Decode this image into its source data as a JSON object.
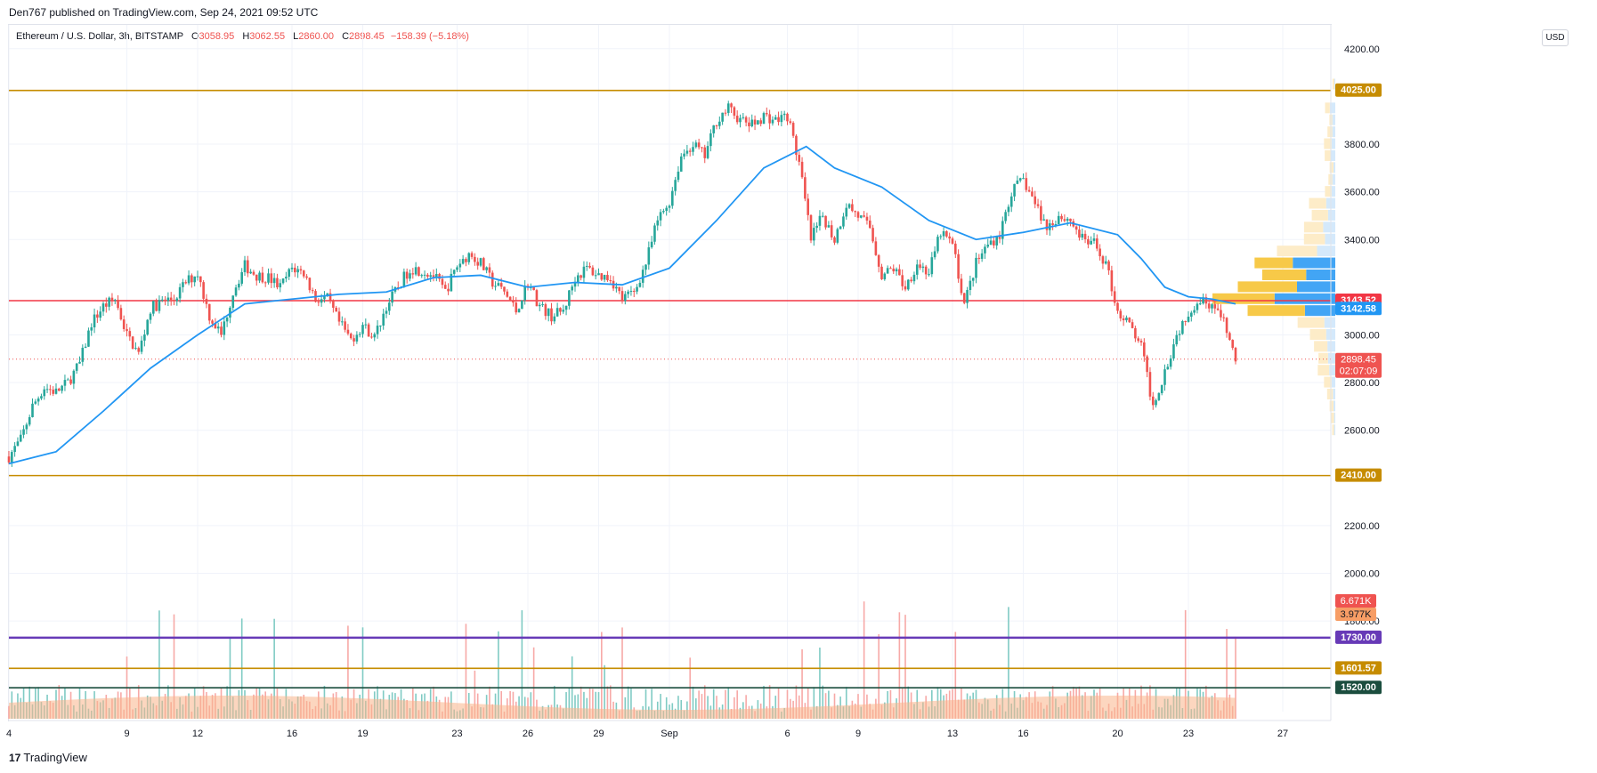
{
  "header": {
    "published": "Den767 published on TradingView.com, Sep 24, 2021 09:52 UTC"
  },
  "legend": {
    "symbol": "Ethereum / U.S. Dollar, 3h, BITSTAMP",
    "o_label": "O",
    "o": "3058.95",
    "h_label": "H",
    "h": "3062.55",
    "l_label": "L",
    "l": "2860.00",
    "c_label": "C",
    "c": "2898.45",
    "change": "−158.39 (−5.18%)"
  },
  "currency": "USD",
  "footer": {
    "logo_mark": "17",
    "logo_text": "TradingView"
  },
  "colors": {
    "up": "#26a69a",
    "down": "#ef5350",
    "ma": "#2196f3",
    "orange_line": "#c68c00",
    "red_line": "#f23645",
    "purple_line": "#673ab7",
    "dark_line": "#1b4d3e",
    "volume_ma": "#f9b48a"
  },
  "chart_data": {
    "type": "candlestick",
    "symbol": "ETH/USD",
    "interval": "3h",
    "exchange": "BITSTAMP",
    "ylim": [
      1420,
      4300
    ],
    "y_ticks": [
      4200,
      3800,
      3600,
      3400,
      3000,
      2800,
      2600,
      2200,
      2000,
      1800
    ],
    "x_ticks": [
      {
        "label": "4",
        "day": 0
      },
      {
        "label": "9",
        "day": 5
      },
      {
        "label": "12",
        "day": 8
      },
      {
        "label": "16",
        "day": 12
      },
      {
        "label": "19",
        "day": 15
      },
      {
        "label": "23",
        "day": 19
      },
      {
        "label": "26",
        "day": 22
      },
      {
        "label": "29",
        "day": 25
      },
      {
        "label": "Sep",
        "day": 28
      },
      {
        "label": "6",
        "day": 33
      },
      {
        "label": "9",
        "day": 36
      },
      {
        "label": "13",
        "day": 40
      },
      {
        "label": "16",
        "day": 43
      },
      {
        "label": "20",
        "day": 47
      },
      {
        "label": "23",
        "day": 50
      },
      {
        "label": "27",
        "day": 54
      }
    ],
    "close_path": [
      [
        0,
        2490
      ],
      [
        0.5,
        2560
      ],
      [
        1,
        2700
      ],
      [
        1.5,
        2780
      ],
      [
        2,
        2760
      ],
      [
        2.5,
        2800
      ],
      [
        3,
        2880
      ],
      [
        3.5,
        3050
      ],
      [
        4,
        3120
      ],
      [
        4.5,
        3150
      ],
      [
        5,
        3000
      ],
      [
        5.5,
        2920
      ],
      [
        6,
        3110
      ],
      [
        6.5,
        3140
      ],
      [
        7,
        3150
      ],
      [
        7.5,
        3220
      ],
      [
        8,
        3260
      ],
      [
        8.5,
        3080
      ],
      [
        9,
        3000
      ],
      [
        9.5,
        3180
      ],
      [
        10,
        3290
      ],
      [
        10.5,
        3250
      ],
      [
        11,
        3240
      ],
      [
        11.5,
        3200
      ],
      [
        12,
        3280
      ],
      [
        12.5,
        3260
      ],
      [
        13,
        3150
      ],
      [
        13.5,
        3150
      ],
      [
        14,
        3050
      ],
      [
        14.5,
        2980
      ],
      [
        15,
        3040
      ],
      [
        15.5,
        2990
      ],
      [
        16,
        3120
      ],
      [
        16.5,
        3200
      ],
      [
        17,
        3280
      ],
      [
        17.5,
        3270
      ],
      [
        18,
        3250
      ],
      [
        18.5,
        3180
      ],
      [
        19,
        3290
      ],
      [
        19.5,
        3340
      ],
      [
        20,
        3300
      ],
      [
        20.5,
        3220
      ],
      [
        21,
        3180
      ],
      [
        21.5,
        3100
      ],
      [
        22,
        3220
      ],
      [
        22.5,
        3120
      ],
      [
        23,
        3080
      ],
      [
        23.5,
        3100
      ],
      [
        24,
        3240
      ],
      [
        24.5,
        3280
      ],
      [
        25,
        3250
      ],
      [
        25.5,
        3240
      ],
      [
        26,
        3150
      ],
      [
        26.5,
        3180
      ],
      [
        27,
        3300
      ],
      [
        27.5,
        3480
      ],
      [
        28,
        3560
      ],
      [
        28.5,
        3750
      ],
      [
        29,
        3800
      ],
      [
        29.5,
        3750
      ],
      [
        30,
        3900
      ],
      [
        30.5,
        3950
      ],
      [
        31,
        3900
      ],
      [
        31.5,
        3880
      ],
      [
        32,
        3920
      ],
      [
        32.5,
        3900
      ],
      [
        33,
        3920
      ],
      [
        33.5,
        3720
      ],
      [
        34,
        3400
      ],
      [
        34.5,
        3500
      ],
      [
        35,
        3400
      ],
      [
        35.5,
        3550
      ],
      [
        36,
        3500
      ],
      [
        36.5,
        3450
      ],
      [
        37,
        3250
      ],
      [
        37.5,
        3280
      ],
      [
        38,
        3200
      ],
      [
        38.5,
        3300
      ],
      [
        39,
        3260
      ],
      [
        39.5,
        3430
      ],
      [
        40,
        3380
      ],
      [
        40.5,
        3130
      ],
      [
        41,
        3300
      ],
      [
        41.5,
        3380
      ],
      [
        42,
        3420
      ],
      [
        42.5,
        3600
      ],
      [
        43,
        3650
      ],
      [
        43.5,
        3550
      ],
      [
        44,
        3450
      ],
      [
        44.5,
        3500
      ],
      [
        45,
        3480
      ],
      [
        45.5,
        3400
      ],
      [
        46,
        3380
      ],
      [
        46.5,
        3300
      ],
      [
        47,
        3100
      ],
      [
        47.5,
        3040
      ],
      [
        48,
        2950
      ],
      [
        48.5,
        2700
      ],
      [
        49,
        2850
      ],
      [
        49.5,
        3000
      ],
      [
        50,
        3100
      ],
      [
        50.5,
        3150
      ],
      [
        51,
        3130
      ],
      [
        51.5,
        3050
      ],
      [
        52,
        2898
      ]
    ],
    "ma_path": [
      [
        0,
        2460
      ],
      [
        2,
        2510
      ],
      [
        4,
        2680
      ],
      [
        6,
        2860
      ],
      [
        8,
        3000
      ],
      [
        10,
        3130
      ],
      [
        12,
        3150
      ],
      [
        14,
        3170
      ],
      [
        16,
        3180
      ],
      [
        18,
        3240
      ],
      [
        20,
        3250
      ],
      [
        22,
        3200
      ],
      [
        24,
        3220
      ],
      [
        26,
        3210
      ],
      [
        28,
        3280
      ],
      [
        30,
        3480
      ],
      [
        32,
        3700
      ],
      [
        33.8,
        3790
      ],
      [
        35,
        3700
      ],
      [
        37,
        3620
      ],
      [
        39,
        3480
      ],
      [
        41,
        3400
      ],
      [
        43,
        3430
      ],
      [
        45,
        3470
      ],
      [
        47,
        3420
      ],
      [
        48,
        3320
      ],
      [
        49,
        3200
      ],
      [
        50,
        3160
      ],
      [
        51,
        3150
      ],
      [
        52,
        3130
      ]
    ],
    "horizontal_levels": [
      {
        "value": 4025.0,
        "label": "4025.00",
        "color": "#c68c00"
      },
      {
        "value": 3143.52,
        "label": "3143.52",
        "color": "#f23645"
      },
      {
        "value": 3142.58,
        "label": "3142.58",
        "color": "#2196f3",
        "bg_only": true
      },
      {
        "value": 2410.0,
        "label": "2410.00",
        "color": "#c68c00"
      },
      {
        "value": 1730.0,
        "label": "1730.00",
        "color": "#673ab7"
      },
      {
        "value": 1601.57,
        "label": "1601.57",
        "color": "#c68c00"
      },
      {
        "value": 1520.0,
        "label": "1520.00",
        "color": "#1b4d3e"
      }
    ],
    "last_price": {
      "value": 2898.45,
      "label": "2898.45",
      "countdown": "02:07:09"
    },
    "volume": {
      "last": "6.671K",
      "ma": "3.977K"
    },
    "volume_profile": [
      {
        "price": 4050,
        "up": 0.02,
        "down": 0.015
      },
      {
        "price": 3950,
        "up": 0.05,
        "down": 0.09
      },
      {
        "price": 3900,
        "up": 0.03,
        "down": 0.05
      },
      {
        "price": 3850,
        "up": 0.05,
        "down": 0.05
      },
      {
        "price": 3800,
        "up": 0.08,
        "down": 0.06
      },
      {
        "price": 3750,
        "up": 0.06,
        "down": 0.08
      },
      {
        "price": 3700,
        "up": 0.04,
        "down": 0.03
      },
      {
        "price": 3650,
        "up": 0.04,
        "down": 0.05
      },
      {
        "price": 3600,
        "up": 0.07,
        "down": 0.06
      },
      {
        "price": 3550,
        "up": 0.18,
        "down": 0.15
      },
      {
        "price": 3500,
        "up": 0.17,
        "down": 0.12
      },
      {
        "price": 3450,
        "up": 0.2,
        "down": 0.2
      },
      {
        "price": 3400,
        "up": 0.22,
        "down": 0.17
      },
      {
        "price": 3350,
        "up": 0.42,
        "down": 0.3
      },
      {
        "price": 3300,
        "up": 0.4,
        "down": 0.7
      },
      {
        "price": 3250,
        "up": 0.46,
        "down": 0.48
      },
      {
        "price": 3200,
        "up": 0.62,
        "down": 0.63
      },
      {
        "price": 3150,
        "up": 0.65,
        "down": 1.0
      },
      {
        "price": 3100,
        "up": 0.6,
        "down": 0.5
      },
      {
        "price": 3050,
        "up": 0.28,
        "down": 0.18
      },
      {
        "price": 3000,
        "up": 0.17,
        "down": 0.15
      },
      {
        "price": 2950,
        "up": 0.14,
        "down": 0.13
      },
      {
        "price": 2900,
        "up": 0.1,
        "down": 0.12
      },
      {
        "price": 2850,
        "up": 0.12,
        "down": 0.1
      },
      {
        "price": 2800,
        "up": 0.08,
        "down": 0.06
      },
      {
        "price": 2750,
        "up": 0.06,
        "down": 0.04
      },
      {
        "price": 2700,
        "up": 0.04,
        "down": 0.03
      },
      {
        "price": 2650,
        "up": 0.03,
        "down": 0.02
      },
      {
        "price": 2600,
        "up": 0.02,
        "down": 0.02
      }
    ]
  }
}
